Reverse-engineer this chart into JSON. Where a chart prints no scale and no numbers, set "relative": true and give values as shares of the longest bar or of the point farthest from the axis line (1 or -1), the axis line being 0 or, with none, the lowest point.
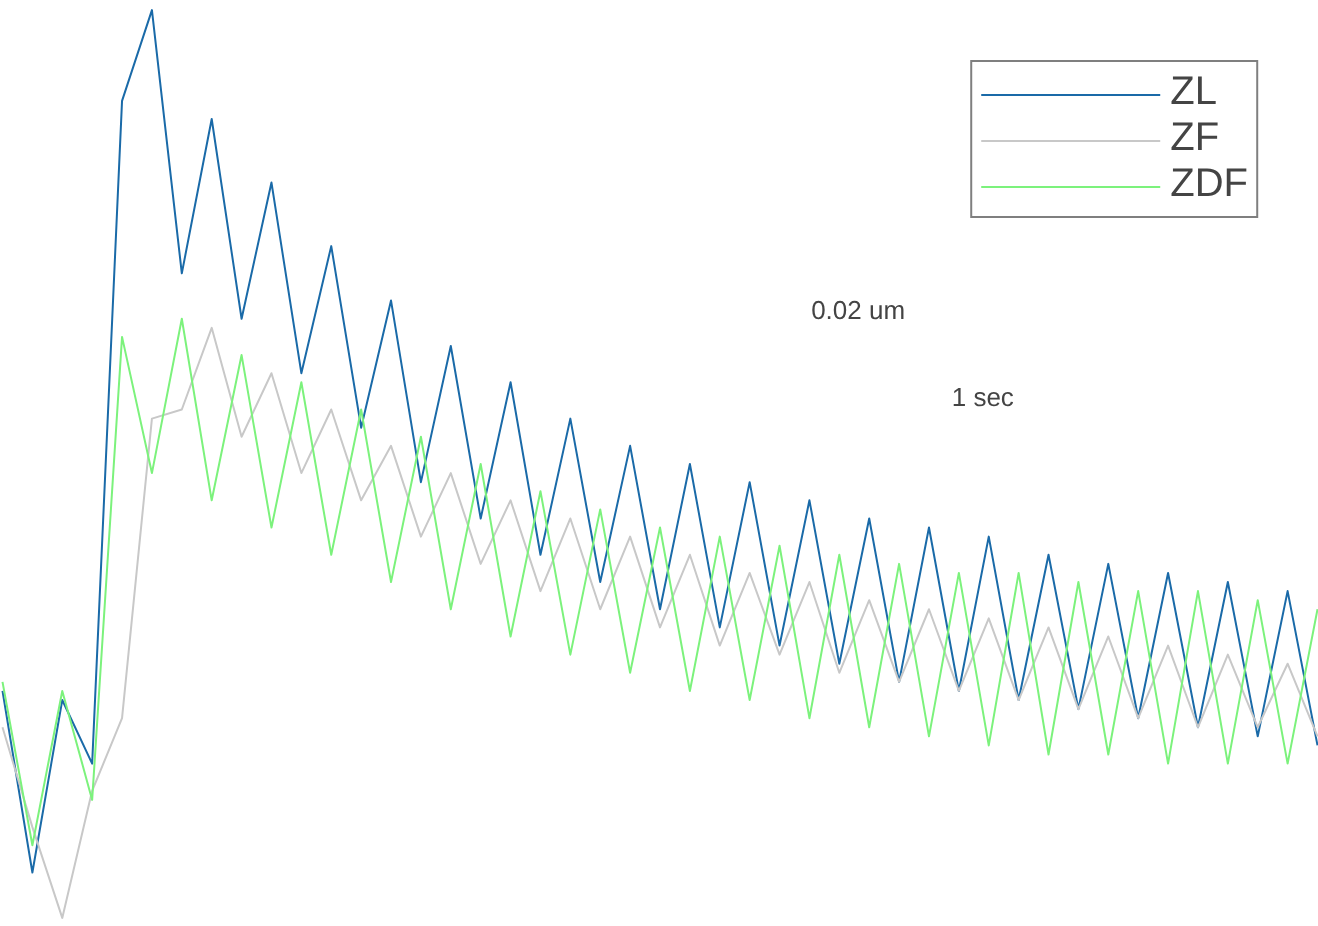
{
  "chart_data": {
    "type": "line",
    "relative": true,
    "categories": [
      null,
      null,
      null,
      null,
      null,
      null,
      null,
      null,
      null,
      null,
      null,
      null,
      null,
      null,
      null,
      null,
      null,
      null,
      null,
      null,
      null,
      null,
      null,
      null,
      null,
      null,
      null,
      null,
      null,
      null,
      null,
      null,
      null,
      null,
      null,
      null,
      null,
      null,
      null,
      null,
      null,
      null,
      null,
      null,
      null
    ],
    "series": [
      {
        "name": "ZL",
        "color": "#1a6aa8",
        "values": [
          0.25,
          0.05,
          0.24,
          0.17,
          0.9,
          1.0,
          0.71,
          0.88,
          0.66,
          0.81,
          0.6,
          0.74,
          0.54,
          0.68,
          0.48,
          0.63,
          0.44,
          0.59,
          0.4,
          0.55,
          0.37,
          0.52,
          0.34,
          0.5,
          0.32,
          0.48,
          0.3,
          0.46,
          0.28,
          0.44,
          0.26,
          0.43,
          0.25,
          0.42,
          0.24,
          0.4,
          0.23,
          0.39,
          0.22,
          0.38,
          0.21,
          0.37,
          0.2,
          0.36,
          0.19
        ]
      },
      {
        "name": "ZF",
        "color": "#c8c8c8",
        "values": [
          0.21,
          0.1,
          0.0,
          0.14,
          0.22,
          0.55,
          0.56,
          0.65,
          0.53,
          0.6,
          0.49,
          0.56,
          0.46,
          0.52,
          0.42,
          0.49,
          0.39,
          0.46,
          0.36,
          0.44,
          0.34,
          0.42,
          0.32,
          0.4,
          0.3,
          0.38,
          0.29,
          0.37,
          0.27,
          0.35,
          0.26,
          0.34,
          0.25,
          0.33,
          0.24,
          0.32,
          0.23,
          0.31,
          0.22,
          0.3,
          0.21,
          0.29,
          0.21,
          0.28,
          0.2
        ]
      },
      {
        "name": "ZDF",
        "color": "#7cf27c",
        "values": [
          0.26,
          0.08,
          0.25,
          0.13,
          0.64,
          0.49,
          0.66,
          0.46,
          0.62,
          0.43,
          0.59,
          0.4,
          0.56,
          0.37,
          0.53,
          0.34,
          0.5,
          0.31,
          0.47,
          0.29,
          0.45,
          0.27,
          0.43,
          0.25,
          0.42,
          0.24,
          0.41,
          0.22,
          0.4,
          0.21,
          0.39,
          0.2,
          0.38,
          0.19,
          0.38,
          0.18,
          0.37,
          0.18,
          0.36,
          0.17,
          0.36,
          0.17,
          0.35,
          0.17,
          0.34
        ]
      }
    ],
    "annotations": [
      "0.02 um",
      "1 sec"
    ],
    "legend": "top right",
    "grid": false,
    "line_style": "solid",
    "marker": "none"
  }
}
